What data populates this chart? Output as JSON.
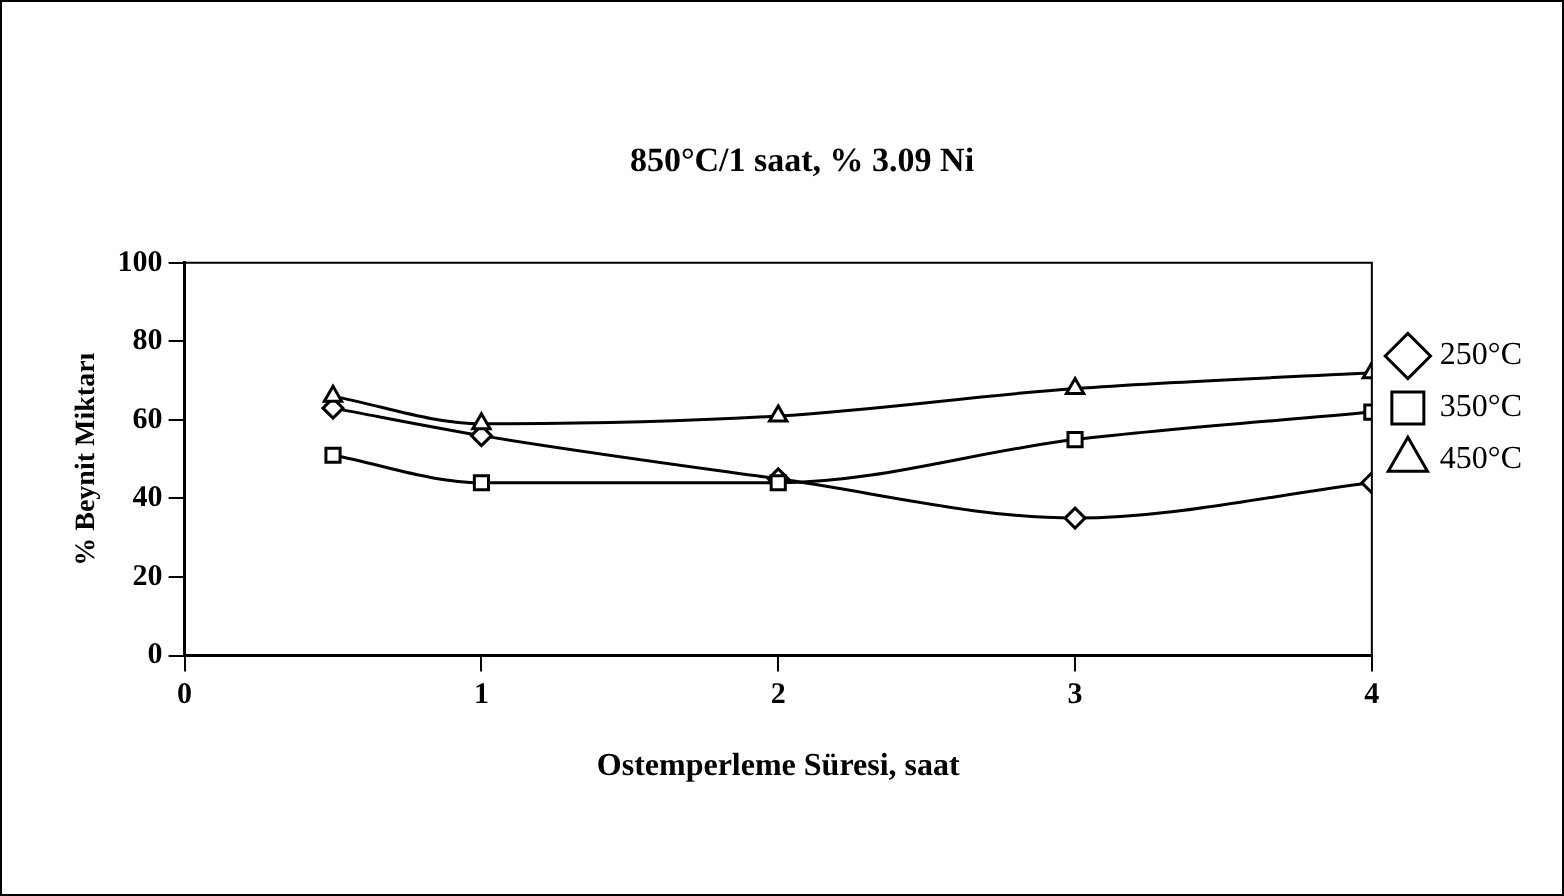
{
  "chart_data": {
    "type": "line",
    "title": "850°C/1 saat, % 3.09 Ni",
    "xlabel": "Ostemperleme Süresi, saat",
    "ylabel": "% Beynit Miktarı",
    "x": [
      0.5,
      1,
      2,
      3,
      4
    ],
    "series": [
      {
        "name": "250°C",
        "color": "#000000",
        "marker": "diamond",
        "values": [
          63,
          56,
          45,
          35,
          44
        ]
      },
      {
        "name": "350°C",
        "color": "#000000",
        "marker": "square",
        "values": [
          51,
          44,
          44,
          55,
          62
        ]
      },
      {
        "name": "450°C",
        "color": "#000000",
        "marker": "triangle",
        "values": [
          66,
          59,
          61,
          68,
          72
        ]
      }
    ],
    "xlim": [
      0,
      4
    ],
    "xticks": [
      0,
      1,
      2,
      3,
      4
    ],
    "ylim": [
      0,
      100
    ],
    "yticks": [
      0,
      20,
      40,
      60,
      80,
      100
    ],
    "grid": false,
    "legend": "right",
    "line_style": "solid"
  }
}
